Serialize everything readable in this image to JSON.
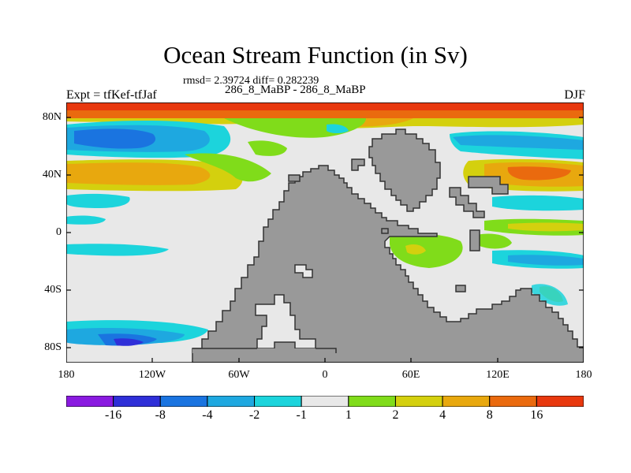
{
  "title": "Ocean Stream Function (in Sv)",
  "stats": "rmsd= 2.39724 diff= 0.282239",
  "left_label": "Expt = tfKef-tfJaf",
  "center_label": "286_8_MaBP - 286_8_MaBP",
  "right_label": "DJF",
  "y_ticks": [
    "80N",
    "40N",
    "0",
    "40S",
    "80S"
  ],
  "x_ticks": [
    "180",
    "120W",
    "60W",
    "0",
    "60E",
    "120E",
    "180"
  ],
  "colorbar": {
    "labels": [
      "-16",
      "-8",
      "-4",
      "-2",
      "-1",
      "1",
      "2",
      "4",
      "8",
      "16"
    ],
    "colors": [
      "#8a1ae0",
      "#2f2fd8",
      "#1a74e0",
      "#1ea8e0",
      "#1cd4dc",
      "#e8e8e8",
      "#80dc1a",
      "#d4d00e",
      "#e8a80e",
      "#ea6a0e",
      "#e8380e"
    ]
  },
  "land_color": "#999999",
  "ocean_background": "#e8e8e8"
}
